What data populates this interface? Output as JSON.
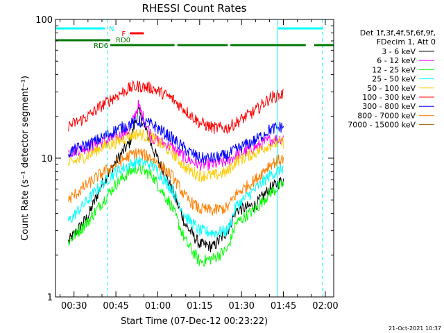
{
  "chart_data": {
    "type": "line",
    "title": "RHESSI Count Rates",
    "xlabel": "Start Time (07-Dec-12 00:23:22)",
    "ylabel": "Count Rate (s⁻¹ detector segment⁻¹)",
    "yscale": "log",
    "xlim": [
      "00:23:22",
      "02:03:00"
    ],
    "ylim": [
      1,
      100
    ],
    "x_ticks": [
      "00:30",
      "00:45",
      "01:00",
      "01:15",
      "01:30",
      "01:45",
      "02:00"
    ],
    "y_ticks": [
      "1",
      "10",
      "100"
    ],
    "grid": false,
    "legend_position": "right",
    "legend_header": [
      "Det 1f,3f,4f,5f,6f,9f,",
      "FDecim 1, Att 0"
    ],
    "series": [
      {
        "name": "3 - 6 keV",
        "color": "#000000",
        "x": [
          "00:28",
          "00:35",
          "00:40",
          "00:45",
          "00:50",
          "00:53",
          "00:58",
          "01:05",
          "01:10",
          "01:15",
          "01:20",
          "01:25",
          "01:28",
          "01:35",
          "01:40",
          "01:45"
        ],
        "y": [
          2.5,
          3.8,
          6.5,
          9.5,
          13,
          22,
          12,
          6,
          3.3,
          2.4,
          2.3,
          3.0,
          4.2,
          4.6,
          6.0,
          7.0
        ]
      },
      {
        "name": "6 - 12 keV",
        "color": "#ff00ff",
        "x": [
          "00:28",
          "00:35",
          "00:40",
          "00:45",
          "00:50",
          "00:53",
          "00:58",
          "01:05",
          "01:10",
          "01:15",
          "01:20",
          "01:25",
          "01:28",
          "01:35",
          "01:40",
          "01:45"
        ],
        "y": [
          11,
          12,
          13,
          14,
          16,
          24,
          14,
          12,
          10,
          9.0,
          9.0,
          9.5,
          10.5,
          12,
          13.5,
          14
        ]
      },
      {
        "name": "12 - 25 keV",
        "color": "#00ff00",
        "x": [
          "00:28",
          "00:35",
          "00:40",
          "00:45",
          "00:50",
          "00:53",
          "00:58",
          "01:05",
          "01:10",
          "01:15",
          "01:20",
          "01:25",
          "01:28",
          "01:35",
          "01:40",
          "01:45"
        ],
        "y": [
          2.5,
          3.5,
          4.8,
          6.5,
          8.0,
          8.5,
          7.5,
          4.5,
          2.5,
          1.8,
          1.9,
          2.2,
          3.4,
          4.3,
          5.6,
          6.5
        ]
      },
      {
        "name": "25 - 50 keV",
        "color": "#00ffff",
        "x": [
          "00:28",
          "00:35",
          "00:40",
          "00:45",
          "00:50",
          "00:53",
          "00:58",
          "01:05",
          "01:10",
          "01:15",
          "01:20",
          "01:25",
          "01:28",
          "01:35",
          "01:40",
          "01:45"
        ],
        "y": [
          3.5,
          5.0,
          6.5,
          8.0,
          9.0,
          9.5,
          9.0,
          6.0,
          3.8,
          3.0,
          2.9,
          3.0,
          4.5,
          6.0,
          7.5,
          8.5
        ]
      },
      {
        "name": "50 - 100 keV",
        "color": "#ffcc00",
        "x": [
          "00:28",
          "00:35",
          "00:40",
          "00:45",
          "00:50",
          "00:53",
          "00:58",
          "01:05",
          "01:10",
          "01:15",
          "01:20",
          "01:25",
          "01:28",
          "01:35",
          "01:40",
          "01:45"
        ],
        "y": [
          9.0,
          10.5,
          12,
          13,
          14.5,
          15,
          14,
          11,
          8.5,
          7.5,
          7.5,
          8.0,
          9.5,
          11,
          12.5,
          13
        ]
      },
      {
        "name": "100 - 300 keV",
        "color": "#ff0000",
        "x": [
          "00:28",
          "00:35",
          "00:40",
          "00:45",
          "00:50",
          "00:53",
          "00:58",
          "01:05",
          "01:10",
          "01:15",
          "01:20",
          "01:25",
          "01:28",
          "01:35",
          "01:40",
          "01:45"
        ],
        "y": [
          17,
          20,
          24,
          28,
          32,
          33,
          32,
          27,
          22,
          18,
          16.5,
          16.5,
          18,
          22,
          27,
          29
        ]
      },
      {
        "name": "300 - 800 keV",
        "color": "#0000ff",
        "x": [
          "00:28",
          "00:35",
          "00:40",
          "00:45",
          "00:50",
          "00:53",
          "00:58",
          "01:05",
          "01:10",
          "01:15",
          "01:20",
          "01:25",
          "01:28",
          "01:35",
          "01:40",
          "01:45"
        ],
        "y": [
          11,
          12.5,
          14,
          16,
          17.5,
          18.5,
          17.5,
          14,
          11.5,
          10,
          10,
          10.5,
          11.5,
          13.5,
          16,
          17
        ]
      },
      {
        "name": "800 - 7000 keV",
        "color": "#ff8000",
        "x": [
          "00:28",
          "00:35",
          "00:40",
          "00:45",
          "00:50",
          "00:53",
          "00:58",
          "01:05",
          "01:10",
          "01:15",
          "01:20",
          "01:25",
          "01:28",
          "01:35",
          "01:40",
          "01:45"
        ],
        "y": [
          5.0,
          6.5,
          7.8,
          9.0,
          10.5,
          11,
          10,
          7.5,
          5.2,
          4.3,
          4.2,
          4.4,
          5.5,
          7.0,
          9.0,
          10
        ]
      },
      {
        "name": "7000 - 15000 keV",
        "color": "#996600",
        "x": [],
        "y": []
      }
    ],
    "flag_bars": [
      {
        "label": "N",
        "color": "#00ffff",
        "segments": [
          [
            "00:23:22",
            "00:41"
          ],
          [
            "01:43",
            "01:59"
          ]
        ]
      },
      {
        "label": "F",
        "color": "#ff0000",
        "segments": [
          [
            "00:50",
            "00:55"
          ]
        ]
      },
      {
        "label": "RD0",
        "color": "#007700",
        "segments": [
          [
            "00:23:22",
            "00:43"
          ]
        ]
      },
      {
        "label": "RD6",
        "color": "#007700",
        "segments": [
          [
            "00:43",
            "01:06"
          ],
          [
            "01:07",
            "01:25"
          ],
          [
            "01:26",
            "01:53"
          ],
          [
            "01:56",
            "02:03"
          ]
        ]
      }
    ],
    "vertical_markers": [
      {
        "at": "00:23:22",
        "color": "#00ffff",
        "style": "solid"
      },
      {
        "at": "00:42",
        "color": "#00ffff",
        "style": "dashed"
      },
      {
        "at": "01:43",
        "color": "#00ffff",
        "style": "solid"
      },
      {
        "at": "01:59",
        "color": "#00ffff",
        "style": "dashed"
      }
    ]
  },
  "footer_timestamp": "21-Oct-2021 10:37"
}
